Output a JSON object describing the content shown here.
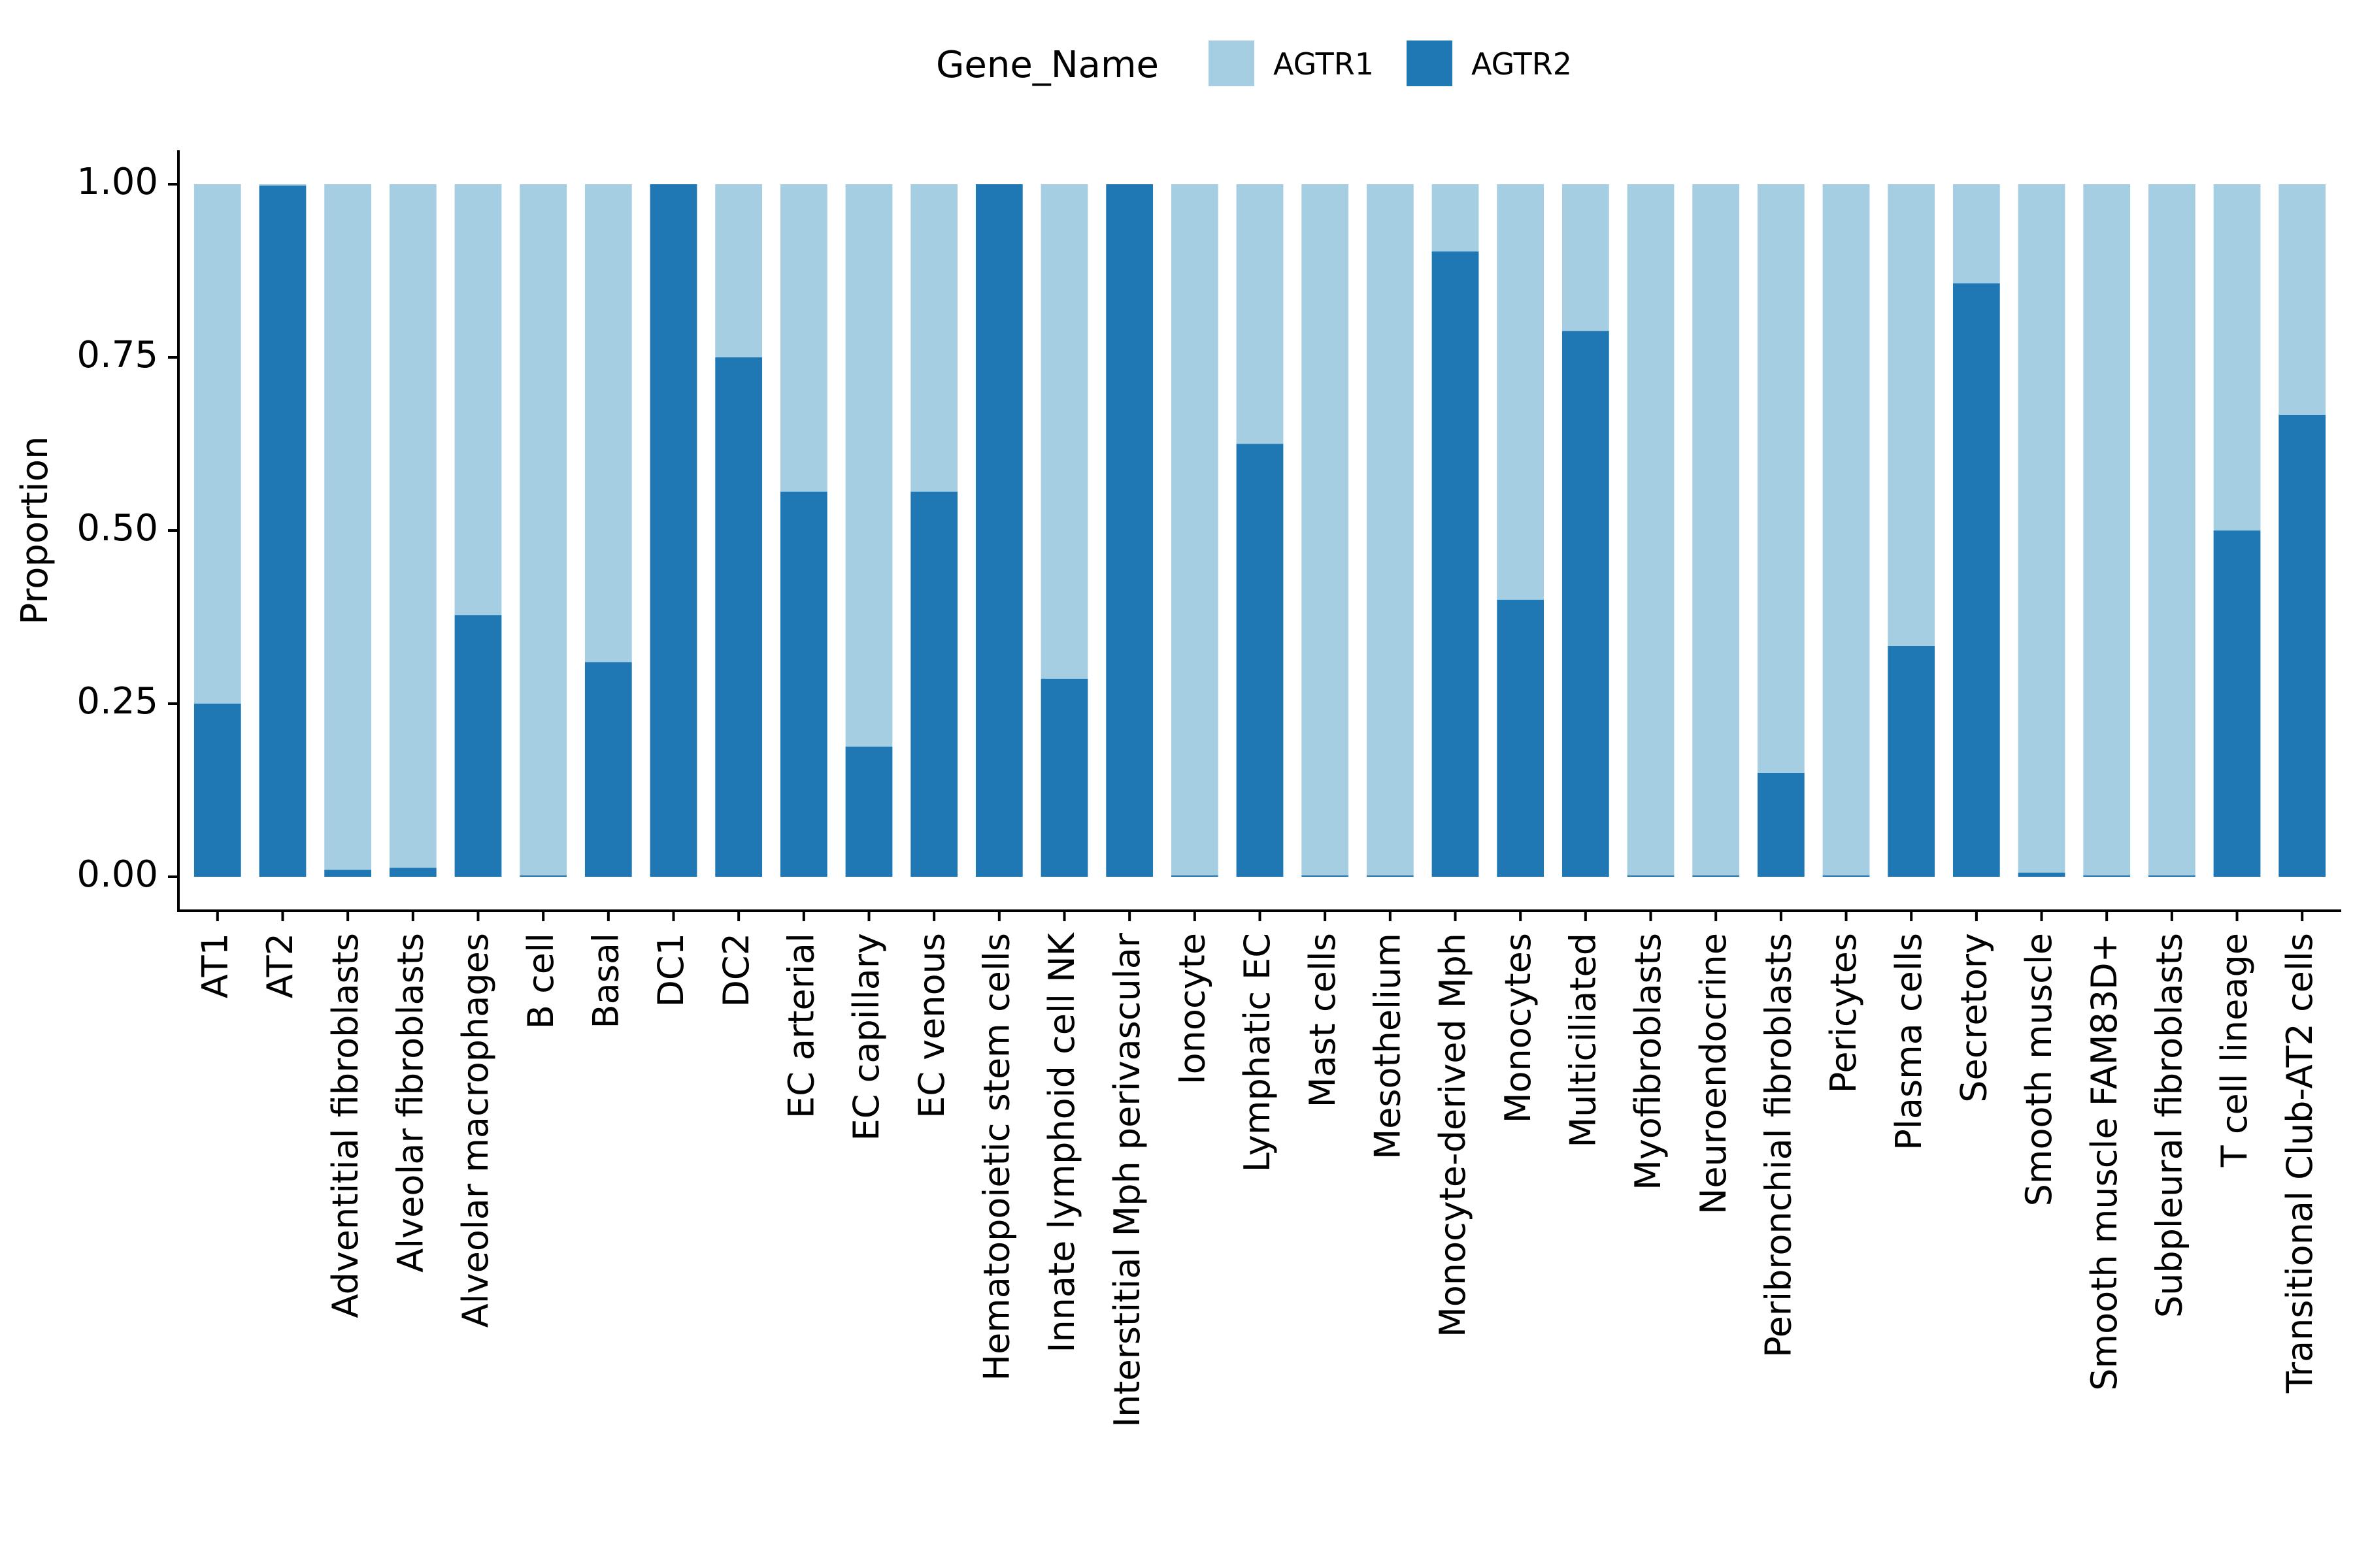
{
  "chart_data": {
    "type": "bar",
    "stacked": true,
    "title": "",
    "xlabel": "",
    "ylabel": "Proportion",
    "ylim": [
      0,
      1.05
    ],
    "yticks": [
      "0.00",
      "0.25",
      "0.50",
      "0.75",
      "1.00"
    ],
    "grid": false,
    "legend": {
      "title": "Gene_Name",
      "position": "top",
      "entries": [
        "AGTR1",
        "AGTR2"
      ]
    },
    "colors": {
      "AGTR1": "#A6CEE3",
      "AGTR2": "#1F78B4"
    },
    "categories": [
      "AT1",
      "AT2",
      "Adventitial fibroblasts",
      "Alveolar fibroblasts",
      "Alveolar macrophages",
      "B cell",
      "Basal",
      "DC1",
      "DC2",
      "EC arterial",
      "EC capillary",
      "EC venous",
      "Hematopoietic stem cells",
      "Innate lymphoid cell NK",
      "Interstitial Mph perivascular",
      "Ionocyte",
      "Lymphatic EC",
      "Mast cells",
      "Mesothelium",
      "Monocyte-derived Mph",
      "Monocytes",
      "Multiciliated",
      "Myofibroblasts",
      "Neuroendocrine",
      "Peribronchial fibroblasts",
      "Pericytes",
      "Plasma cells",
      "Secretory",
      "Smooth muscle",
      "Smooth muscle FAM83D+",
      "Subpleural fibroblasts",
      "T cell lineage",
      "Transitional Club-AT2 cells"
    ],
    "series": [
      {
        "name": "AGTR2",
        "values": [
          0.25,
          0.998,
          0.01,
          0.013,
          0.378,
          0.002,
          0.31,
          1.0,
          0.75,
          0.556,
          0.188,
          0.556,
          1.0,
          0.286,
          1.0,
          0.002,
          0.625,
          0.002,
          0.002,
          0.903,
          0.4,
          0.788,
          0.002,
          0.002,
          0.15,
          0.002,
          0.333,
          0.857,
          0.006,
          0.002,
          0.002,
          0.5,
          0.667
        ]
      },
      {
        "name": "AGTR1",
        "values": [
          0.75,
          0.002,
          0.99,
          0.987,
          0.622,
          0.998,
          0.69,
          0.0,
          0.25,
          0.444,
          0.812,
          0.444,
          0.0,
          0.714,
          0.0,
          0.998,
          0.375,
          0.998,
          0.998,
          0.097,
          0.6,
          0.212,
          0.998,
          0.998,
          0.85,
          0.998,
          0.667,
          0.143,
          0.994,
          0.998,
          0.998,
          0.5,
          0.333
        ]
      }
    ]
  }
}
